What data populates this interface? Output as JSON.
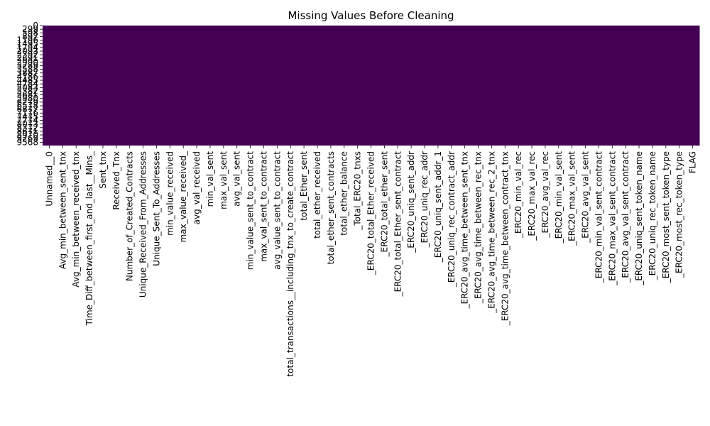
{
  "chart_data": {
    "type": "heatmap",
    "title": "Missing Values Before Cleaning",
    "xlabel": "",
    "ylabel": "",
    "colorbar": false,
    "colors": {
      "false": "#440154",
      "true": "#fde725"
    },
    "columns": [
      "Unnamed__0",
      "Avg_min_between_sent_tnx",
      "Avg_min_between_received_tnx",
      "Time_Diff_between_first_and_last__Mins_",
      "Sent_tnx",
      "Received_Tnx",
      "Number_of_Created_Contracts",
      "Unique_Received_From_Addresses",
      "Unique_Sent_To_Addresses",
      "min_value_received",
      "max_value_received_",
      "avg_val_received",
      "min_val_sent",
      "max_val_sent",
      "avg_val_sent",
      "min_value_sent_to_contract",
      "max_val_sent_to_contract",
      "avg_value_sent_to_contract",
      "total_transactions__including_tnx_to_create_contract",
      "total_Ether_sent",
      "total_ether_received",
      "total_ether_sent_contracts",
      "total_ether_balance",
      "_Total_ERC20_tnxs",
      "_ERC20_total_Ether_received",
      "_ERC20_total_ether_sent",
      "_ERC20_total_Ether_sent_contract",
      "_ERC20_uniq_sent_addr",
      "_ERC20_uniq_rec_addr",
      "_ERC20_uniq_sent_addr_1",
      "_ERC20_uniq_rec_contract_addr",
      "_ERC20_avg_time_between_sent_tnx",
      "_ERC20_avg_time_between_rec_tnx",
      "_ERC20_avg_time_between_rec_2_tnx",
      "_ERC20_avg_time_between_contract_tnx",
      "_ERC20_min_val_rec",
      "_ERC20_max_val_rec",
      "_ERC20_avg_val_rec",
      "_ERC20_min_val_sent",
      "_ERC20_max_val_sent",
      "_ERC20_avg_val_sent",
      "_ERC20_min_val_sent_contract",
      "_ERC20_max_val_sent_contract",
      "_ERC20_avg_val_sent_contract",
      "_ERC20_uniq_sent_token_name",
      "_ERC20_uniq_rec_token_name",
      "_ERC20_most_sent_token_type",
      "_ERC20_most_rec_token_type",
      "FLAG"
    ],
    "row_tick_labels": [
      "0",
      "299",
      "598",
      "897",
      "1196",
      "1495",
      "1794",
      "2093",
      "2392",
      "2691",
      "2990",
      "3289",
      "3588",
      "3887",
      "4186",
      "4485",
      "4784",
      "5083",
      "5382",
      "5681",
      "5980",
      "6279",
      "6578",
      "6877",
      "7176",
      "7475",
      "7774",
      "8073",
      "8372",
      "8671",
      "8970",
      "9269",
      "9568"
    ],
    "row_count": 9841,
    "missing_cells": []
  }
}
